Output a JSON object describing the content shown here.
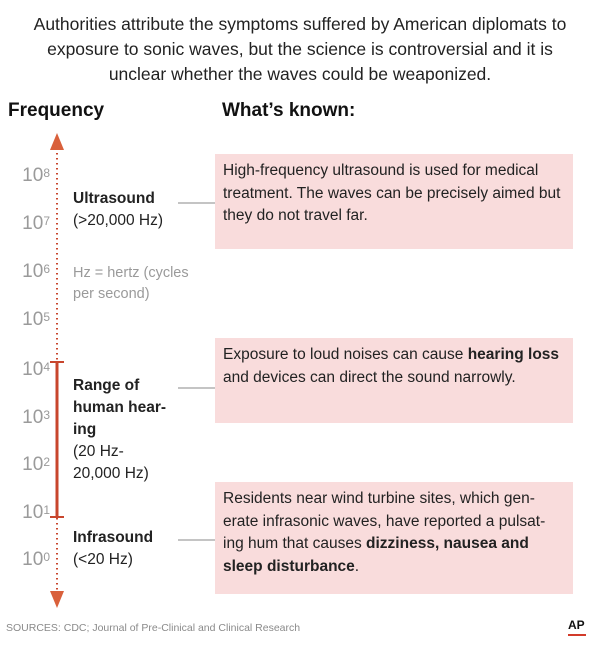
{
  "intro": "Authorities attribute the symptoms suffered by American diplomats to exposure to sonic waves, but the science is controversial and it is unclear whether the waves could be weaponized.",
  "headers": {
    "left": "Frequency",
    "right": "What’s known:"
  },
  "axis": {
    "base": "10",
    "exponents": [
      "8",
      "7",
      "6",
      "5",
      "4",
      "3",
      "2",
      "1",
      "0"
    ],
    "arrow_color": "#d9603b",
    "range_color": "#c8462d"
  },
  "ranges": {
    "ultrasound": {
      "name": "Ultrasound",
      "sub": "(>20,000 Hz)"
    },
    "hearing": {
      "name": "Range of human hear-ing",
      "sub": "(20 Hz-20,000 Hz)"
    },
    "infrasound": {
      "name": "Infrasound",
      "sub": "(<20 Hz)"
    }
  },
  "note": "Hz = hertz (cycles per second)",
  "known": {
    "ultrasound": {
      "text": "High-frequency ultrasound is used for medical treatment. The waves can be precisely aimed but they do not travel far."
    },
    "hearing": {
      "before": "Exposure to loud noises can cause ",
      "bold": "hearing loss",
      "after": " and devices can direct the sound narrowly."
    },
    "infrasound": {
      "before": "Residents near wind turbine sites, which gen-erate infrasonic waves, have reported a pulsat-ing hum that causes ",
      "bold": "dizziness, nausea and sleep disturbance",
      "after": "."
    }
  },
  "box_color": "#f9dcdc",
  "sources": "SOURCES: CDC; Journal of Pre-Clinical and Clinical Research",
  "credit": "AP"
}
